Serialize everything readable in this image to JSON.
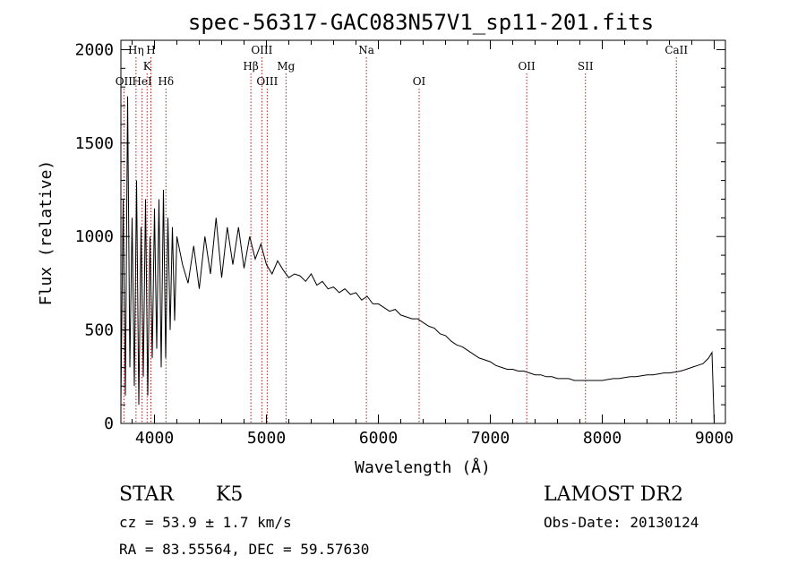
{
  "chart_data": {
    "type": "line",
    "title": "spec-56317-GAC083N57V1_sp11-201.fits",
    "xlabel": "Wavelength (Å)",
    "ylabel": "Flux (relative)",
    "xlim": [
      3700,
      9100
    ],
    "ylim": [
      0,
      2050
    ],
    "x_ticks": [
      4000,
      5000,
      6000,
      7000,
      8000,
      9000
    ],
    "y_ticks": [
      0,
      500,
      1000,
      1500,
      2000
    ],
    "grid": false,
    "series": [
      {
        "x": [
          3700,
          3720,
          3740,
          3760,
          3780,
          3800,
          3820,
          3840,
          3860,
          3880,
          3900,
          3920,
          3940,
          3960,
          3980,
          4000,
          4020,
          4040,
          4060,
          4080,
          4100,
          4120,
          4140,
          4160,
          4180,
          4200,
          4250,
          4300,
          4350,
          4400,
          4450,
          4500,
          4550,
          4600,
          4650,
          4700,
          4750,
          4800,
          4850,
          4900,
          4950,
          5000,
          5050,
          5100,
          5150,
          5200,
          5250,
          5300,
          5350,
          5400,
          5450,
          5500,
          5550,
          5600,
          5650,
          5700,
          5750,
          5800,
          5850,
          5900,
          5950,
          6000,
          6050,
          6100,
          6150,
          6200,
          6250,
          6300,
          6350,
          6400,
          6450,
          6500,
          6550,
          6600,
          6650,
          6700,
          6750,
          6800,
          6850,
          6900,
          6950,
          7000,
          7050,
          7100,
          7150,
          7200,
          7250,
          7300,
          7350,
          7400,
          7450,
          7500,
          7550,
          7600,
          7650,
          7700,
          7750,
          7800,
          7850,
          7900,
          7950,
          8000,
          8050,
          8100,
          8150,
          8200,
          8250,
          8300,
          8350,
          8400,
          8450,
          8500,
          8550,
          8600,
          8650,
          8700,
          8750,
          8800,
          8850,
          8900,
          8950,
          8980,
          9000
        ],
        "y": [
          100,
          1200,
          150,
          1750,
          300,
          1100,
          200,
          1300,
          100,
          1050,
          250,
          1200,
          150,
          1000,
          350,
          1150,
          400,
          1200,
          300,
          1250,
          350,
          1100,
          500,
          1050,
          550,
          1000,
          850,
          750,
          950,
          720,
          1000,
          800,
          1100,
          780,
          1050,
          850,
          1050,
          830,
          1000,
          880,
          960,
          850,
          800,
          870,
          820,
          780,
          800,
          790,
          760,
          800,
          740,
          760,
          720,
          730,
          700,
          720,
          690,
          700,
          660,
          680,
          640,
          640,
          620,
          600,
          610,
          580,
          570,
          560,
          560,
          540,
          520,
          510,
          480,
          470,
          440,
          420,
          410,
          390,
          370,
          350,
          340,
          330,
          310,
          300,
          290,
          290,
          280,
          280,
          270,
          260,
          260,
          250,
          250,
          240,
          240,
          240,
          230,
          230,
          230,
          230,
          230,
          230,
          235,
          240,
          240,
          245,
          250,
          250,
          255,
          260,
          260,
          265,
          270,
          270,
          275,
          280,
          290,
          300,
          310,
          320,
          350,
          380,
          0
        ]
      }
    ],
    "lines": [
      {
        "label": "Hη",
        "x": 3835,
        "row": 1
      },
      {
        "label": "H",
        "x": 3968,
        "row": 1
      },
      {
        "label": "K",
        "x": 3934,
        "row": 2
      },
      {
        "label": "OII",
        "x": 3727,
        "row": 3
      },
      {
        "label": "HeI",
        "x": 3889,
        "row": 3
      },
      {
        "label": "Hδ",
        "x": 4102,
        "row": 3
      },
      {
        "label": "OIII",
        "x": 4959,
        "row": 1
      },
      {
        "label": "Hβ",
        "x": 4861,
        "row": 2
      },
      {
        "label": "OIII",
        "x": 5007,
        "row": 3
      },
      {
        "label": "Mg",
        "x": 5175,
        "row": 2
      },
      {
        "label": "Na",
        "x": 5893,
        "row": 1
      },
      {
        "label": "OI",
        "x": 6364,
        "row": 3
      },
      {
        "label": "OII",
        "x": 7325,
        "row": 2
      },
      {
        "label": "SII",
        "x": 7850,
        "row": 2
      },
      {
        "label": "CaII",
        "x": 8662,
        "row": 1
      }
    ]
  },
  "info": {
    "object_class": "STAR",
    "subclass": "K5",
    "survey": "LAMOST DR2",
    "cz": "cz = 53.9 ± 1.7 km/s",
    "obs_date": "Obs-Date: 20130124",
    "coords": "RA =  83.55564, DEC =  59.57630"
  },
  "colors": {
    "line": "#000000",
    "marker": "#b22222",
    "background": "#ffffff"
  }
}
